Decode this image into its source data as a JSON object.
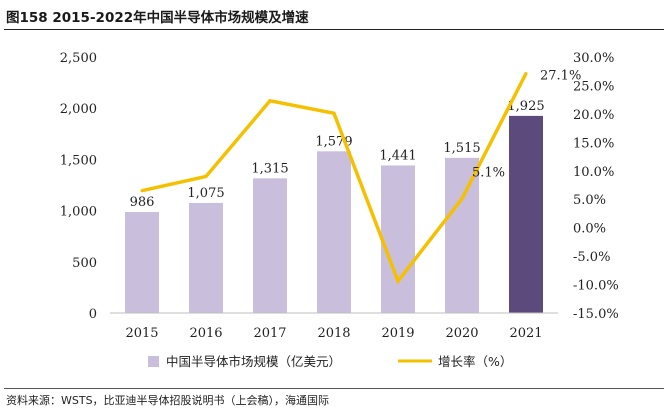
{
  "title": "图158 2015-2022年中国半导体市场规模及增速",
  "source": "资料来源：WSTS，比亚迪半导体招股说明书（上会稿），海通国际",
  "chart_data": {
    "type": "bar",
    "categories": [
      "2015",
      "2016",
      "2017",
      "2018",
      "2019",
      "2020",
      "2021"
    ],
    "series": [
      {
        "name": "中国半导体市场规模（亿美元）",
        "type": "bar",
        "axis": "left",
        "values": [
          986,
          1075,
          1315,
          1579,
          1441,
          1515,
          1925
        ],
        "labels": [
          "986",
          "1,075",
          "1,315",
          "1,579",
          "1,441",
          "1,515",
          "1,925"
        ],
        "color": "#c9bfdc",
        "highlight_color": "#5b4a7b"
      },
      {
        "name": "增长率（%）",
        "type": "line",
        "axis": "right",
        "values": [
          6.5,
          9.0,
          22.3,
          20.1,
          -9.4,
          5.1,
          27.1
        ],
        "labels": [
          "",
          "",
          "",
          "",
          "",
          "5.1%",
          "27.1%"
        ],
        "color": "#f5c000"
      }
    ],
    "y_left": {
      "ylim": [
        0,
        2500
      ],
      "ticks": [
        "0",
        "500",
        "1,000",
        "1,500",
        "2,000",
        "2,500"
      ]
    },
    "y_right": {
      "ylim": [
        -15,
        30
      ],
      "ticks": [
        "-15.0%",
        "-10.0%",
        "-5.0%",
        "0.0%",
        "5.0%",
        "10.0%",
        "15.0%",
        "20.0%",
        "25.0%",
        "30.0%"
      ]
    },
    "grid": false,
    "legend_position": "bottom"
  }
}
